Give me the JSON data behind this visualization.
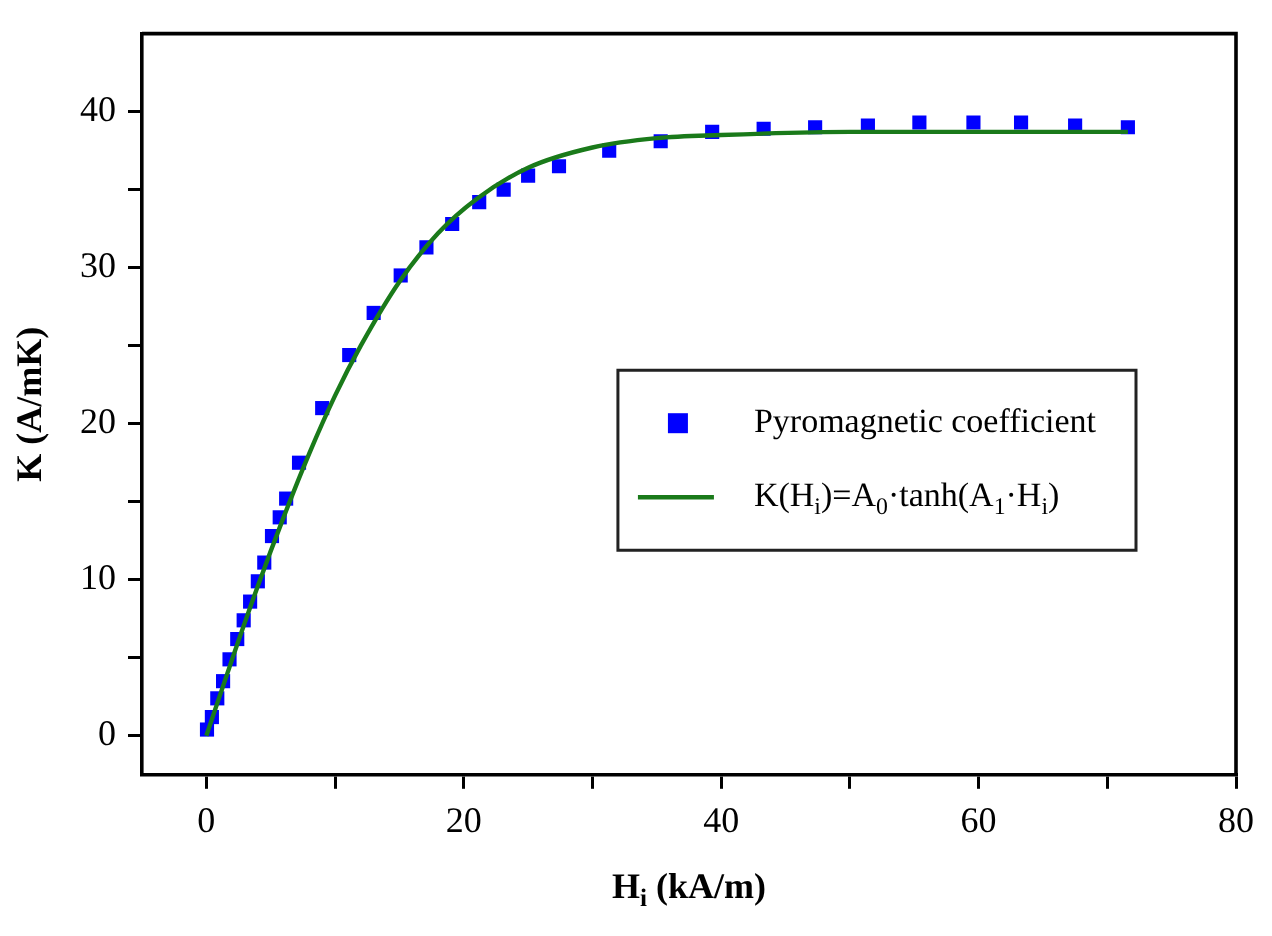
{
  "chart_data": {
    "type": "scatter",
    "xlabel": "H$_{i}$ (kA/m)",
    "ylabel": "K (A/mK)",
    "xlim": [
      -5,
      80
    ],
    "ylim": [
      -2.5,
      45
    ],
    "xticks": [
      0,
      {
        "value": 10,
        "label": null
      },
      20,
      {
        "value": 30,
        "label": null
      },
      40,
      {
        "value": 50,
        "label": null
      },
      60,
      {
        "value": 70,
        "label": null
      },
      80
    ],
    "yticks": [
      0,
      {
        "value": 5,
        "label": null
      },
      10,
      {
        "value": 15,
        "label": null
      },
      20,
      {
        "value": 25,
        "label": null
      },
      30,
      {
        "value": 35,
        "label": null
      },
      40
    ],
    "grid": false,
    "legend": "right",
    "series": [
      {
        "name": "Pyromagnetic coefficient",
        "marker": "square",
        "color": "#0000ff",
        "x": [
          0.05,
          0.43,
          0.85,
          1.3,
          1.8,
          2.4,
          2.9,
          3.4,
          4.0,
          4.5,
          5.1,
          5.7,
          6.2,
          7.2,
          9.0,
          11.1,
          13.0,
          15.1,
          17.1,
          19.1,
          21.2,
          23.1,
          25.0,
          27.4,
          31.3,
          35.3,
          39.3,
          43.3,
          47.3,
          51.4,
          55.4,
          59.6,
          63.3,
          67.5,
          71.6
        ],
        "values": [
          0.4,
          1.2,
          2.4,
          3.5,
          4.9,
          6.2,
          7.4,
          8.6,
          9.9,
          11.1,
          12.8,
          14.0,
          15.2,
          17.5,
          21.0,
          24.4,
          27.1,
          29.5,
          31.3,
          32.8,
          34.2,
          35.0,
          35.9,
          36.5,
          37.5,
          38.1,
          38.7,
          38.9,
          39.0,
          39.1,
          39.3,
          39.3,
          39.3,
          39.1,
          39.0
        ]
      },
      {
        "name": "K(H$_{i}$)=A$_{0}$·tanh(A$_{1}$·H$_{i}$)",
        "type": "line",
        "marker": "none",
        "color": "#1a7a1a",
        "x": [
          0,
          2,
          4,
          6,
          8,
          10,
          12,
          15,
          18,
          21,
          25,
          30,
          35,
          40,
          50,
          60,
          71.6
        ],
        "values": [
          0,
          4.9,
          9.6,
          14.0,
          18.1,
          21.8,
          25.0,
          29.1,
          32.2,
          34.4,
          36.4,
          37.7,
          38.3,
          38.5,
          38.7,
          38.7,
          38.7
        ]
      }
    ]
  }
}
